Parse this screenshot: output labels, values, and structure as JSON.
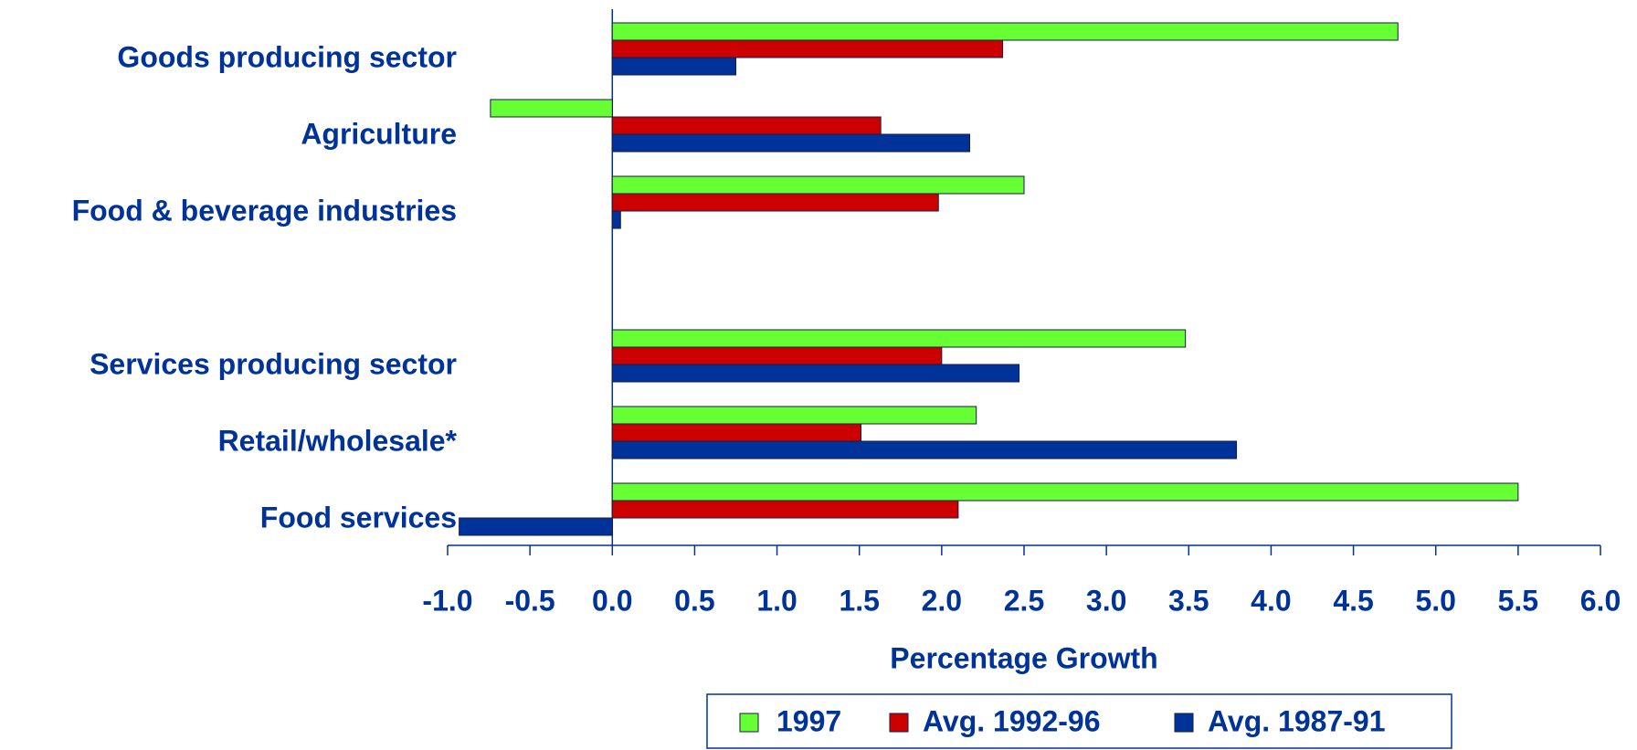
{
  "chart_data": {
    "type": "bar",
    "orientation": "horizontal",
    "x_label": "Percentage Growth",
    "categories": [
      "Goods producing sector",
      "Agriculture",
      "Food & beverage industries",
      null,
      "Services producing sector",
      "Retail/wholesale*",
      "Food services"
    ],
    "series": [
      {
        "name": "1997",
        "color": "#66ff33",
        "values": [
          4.77,
          -0.74,
          2.5,
          null,
          3.48,
          2.21,
          5.5
        ]
      },
      {
        "name": "Avg. 1992-96",
        "color": "#cc0000",
        "values": [
          2.37,
          1.63,
          1.98,
          null,
          2.0,
          1.51,
          2.1
        ]
      },
      {
        "name": "Avg. 1987-91",
        "color": "#003399",
        "values": [
          0.75,
          2.17,
          0.05,
          null,
          2.47,
          3.79,
          -0.93
        ]
      }
    ],
    "xlim": [
      -1.0,
      6.0
    ],
    "xticks": [
      {
        "value": -1,
        "label": "-1.0"
      },
      -0.5,
      {
        "value": 0,
        "label": "0.0"
      },
      0.5,
      {
        "value": 1,
        "label": "1.0"
      },
      1.5,
      {
        "value": 2,
        "label": "2.0"
      },
      2.5,
      {
        "value": 3,
        "label": "3.0"
      },
      3.5,
      {
        "value": 4,
        "label": "4.0"
      },
      4.5,
      {
        "value": 5,
        "label": "5.0"
      },
      5.5,
      {
        "value": 6,
        "label": "6.0"
      }
    ],
    "legend": "bottom"
  }
}
